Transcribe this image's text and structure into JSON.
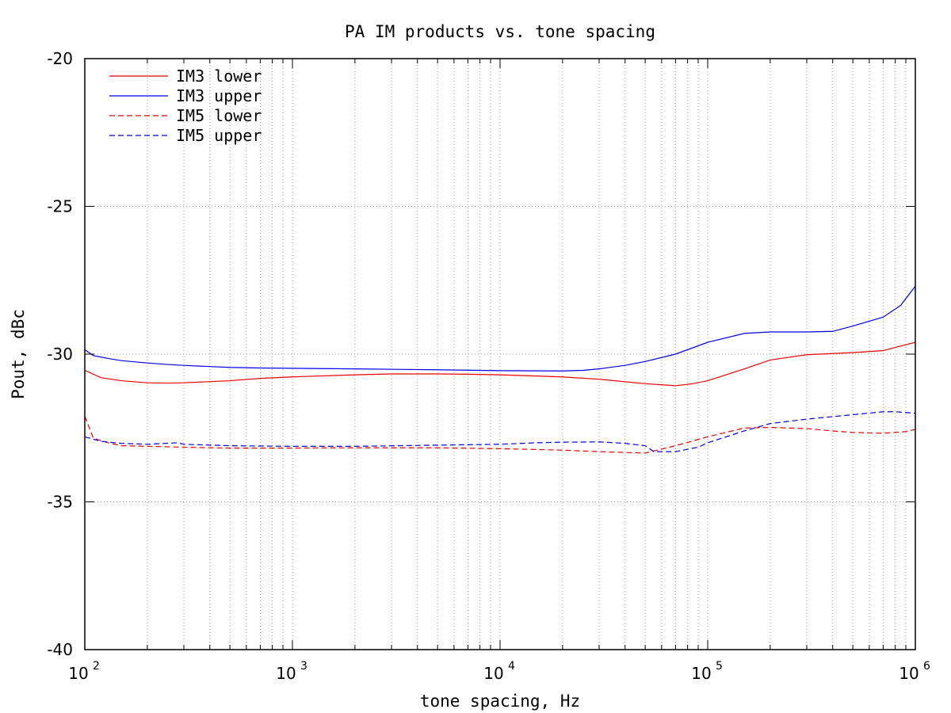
{
  "chart_data": {
    "type": "line",
    "title": "PA IM products vs. tone spacing",
    "xlabel": "tone spacing, Hz",
    "ylabel": "Pout, dBc",
    "xscale": "log",
    "xlim": [
      100,
      1000000
    ],
    "ylim": [
      -40,
      -20
    ],
    "yticks": [
      -20,
      -25,
      -30,
      -35,
      -40
    ],
    "xticks": [
      {
        "value": 100,
        "base": "10",
        "exp": "2"
      },
      {
        "value": 1000,
        "base": "10",
        "exp": "3"
      },
      {
        "value": 10000,
        "base": "10",
        "exp": "4"
      },
      {
        "value": 100000,
        "base": "10",
        "exp": "5"
      },
      {
        "value": 1000000,
        "base": "10",
        "exp": "6"
      }
    ],
    "grid": true,
    "legend_position": "top-left",
    "series": [
      {
        "name": "IM3 lower",
        "color": "#ee0000",
        "dash": "solid",
        "points": [
          [
            100,
            -30.55
          ],
          [
            120,
            -30.8
          ],
          [
            150,
            -30.9
          ],
          [
            200,
            -30.97
          ],
          [
            250,
            -30.98
          ],
          [
            300,
            -30.97
          ],
          [
            400,
            -30.93
          ],
          [
            500,
            -30.9
          ],
          [
            700,
            -30.82
          ],
          [
            1000,
            -30.77
          ],
          [
            2000,
            -30.7
          ],
          [
            3000,
            -30.67
          ],
          [
            5000,
            -30.67
          ],
          [
            7000,
            -30.68
          ],
          [
            10000,
            -30.7
          ],
          [
            20000,
            -30.77
          ],
          [
            30000,
            -30.85
          ],
          [
            50000,
            -31.0
          ],
          [
            70000,
            -31.07
          ],
          [
            85000,
            -31.0
          ],
          [
            100000,
            -30.9
          ],
          [
            150000,
            -30.5
          ],
          [
            200000,
            -30.2
          ],
          [
            300000,
            -30.02
          ],
          [
            500000,
            -29.95
          ],
          [
            700000,
            -29.88
          ],
          [
            1000000,
            -29.6
          ]
        ]
      },
      {
        "name": "IM3 upper",
        "color": "#0000ee",
        "dash": "solid",
        "points": [
          [
            100,
            -29.85
          ],
          [
            110,
            -30.05
          ],
          [
            130,
            -30.15
          ],
          [
            150,
            -30.22
          ],
          [
            200,
            -30.3
          ],
          [
            250,
            -30.35
          ],
          [
            300,
            -30.38
          ],
          [
            400,
            -30.42
          ],
          [
            500,
            -30.45
          ],
          [
            700,
            -30.47
          ],
          [
            1000,
            -30.48
          ],
          [
            2000,
            -30.5
          ],
          [
            5000,
            -30.53
          ],
          [
            10000,
            -30.56
          ],
          [
            20000,
            -30.57
          ],
          [
            25000,
            -30.55
          ],
          [
            30000,
            -30.5
          ],
          [
            40000,
            -30.38
          ],
          [
            50000,
            -30.25
          ],
          [
            70000,
            -30.0
          ],
          [
            100000,
            -29.6
          ],
          [
            150000,
            -29.3
          ],
          [
            200000,
            -29.25
          ],
          [
            300000,
            -29.25
          ],
          [
            400000,
            -29.23
          ],
          [
            500000,
            -29.05
          ],
          [
            700000,
            -28.75
          ],
          [
            850000,
            -28.35
          ],
          [
            1000000,
            -27.7
          ]
        ]
      },
      {
        "name": "IM5 lower",
        "color": "#ee0000",
        "dash": "dashed",
        "points": [
          [
            100,
            -32.1
          ],
          [
            110,
            -32.85
          ],
          [
            130,
            -33.0
          ],
          [
            150,
            -33.1
          ],
          [
            200,
            -33.12
          ],
          [
            300,
            -33.15
          ],
          [
            500,
            -33.18
          ],
          [
            1000,
            -33.18
          ],
          [
            2000,
            -33.17
          ],
          [
            5000,
            -33.17
          ],
          [
            10000,
            -33.2
          ],
          [
            20000,
            -33.25
          ],
          [
            30000,
            -33.3
          ],
          [
            50000,
            -33.35
          ],
          [
            70000,
            -33.1
          ],
          [
            100000,
            -32.8
          ],
          [
            150000,
            -32.5
          ],
          [
            200000,
            -32.48
          ],
          [
            300000,
            -32.52
          ],
          [
            400000,
            -32.6
          ],
          [
            500000,
            -32.65
          ],
          [
            700000,
            -32.68
          ],
          [
            900000,
            -32.62
          ],
          [
            1000000,
            -32.55
          ]
        ]
      },
      {
        "name": "IM5 upper",
        "color": "#0000ee",
        "dash": "dashed",
        "points": [
          [
            100,
            -32.8
          ],
          [
            120,
            -32.95
          ],
          [
            150,
            -33.02
          ],
          [
            200,
            -33.05
          ],
          [
            280,
            -33.0
          ],
          [
            300,
            -33.05
          ],
          [
            500,
            -33.1
          ],
          [
            1000,
            -33.12
          ],
          [
            2000,
            -33.12
          ],
          [
            5000,
            -33.08
          ],
          [
            10000,
            -33.05
          ],
          [
            15000,
            -33.0
          ],
          [
            20000,
            -32.98
          ],
          [
            30000,
            -32.97
          ],
          [
            40000,
            -33.02
          ],
          [
            50000,
            -33.1
          ],
          [
            55000,
            -33.3
          ],
          [
            70000,
            -33.3
          ],
          [
            90000,
            -33.15
          ],
          [
            100000,
            -33.0
          ],
          [
            150000,
            -32.6
          ],
          [
            200000,
            -32.35
          ],
          [
            300000,
            -32.2
          ],
          [
            500000,
            -32.05
          ],
          [
            700000,
            -31.95
          ],
          [
            800000,
            -31.95
          ],
          [
            1000000,
            -32.0
          ]
        ]
      }
    ]
  }
}
